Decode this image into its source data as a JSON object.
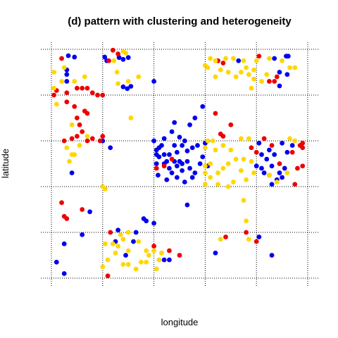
{
  "chart_data": {
    "type": "scatter",
    "title": "(d) pattern with clustering and heterogeneity",
    "xlabel": "longitude",
    "ylabel": "latitude",
    "xlim": [
      0,
      5
    ],
    "ylim": [
      0,
      5
    ],
    "grid": "dotted",
    "colors": {
      "blue": "#0000ee",
      "red": "#ee0000",
      "gold": "#ffd700"
    },
    "series": [
      {
        "color": "blue",
        "points": [
          [
            0.45,
            4.83
          ],
          [
            0.33,
            4.86
          ],
          [
            1.04,
            4.83
          ],
          [
            1.08,
            4.75
          ],
          [
            1.32,
            4.82
          ],
          [
            1.5,
            4.82
          ],
          [
            1.4,
            4.78
          ],
          [
            0.3,
            4.55
          ],
          [
            0.3,
            4.45
          ],
          [
            0.3,
            4.3
          ],
          [
            1.4,
            4.18
          ],
          [
            1.48,
            4.14
          ],
          [
            1.55,
            4.19
          ],
          [
            2.0,
            4.3
          ],
          [
            2.0,
            3.0
          ],
          [
            2.35,
            3.2
          ],
          [
            2.5,
            3.08
          ],
          [
            2.7,
            3.35
          ],
          [
            2.95,
            3.75
          ],
          [
            2.8,
            3.5
          ],
          [
            2.4,
            3.4
          ],
          [
            2.1,
            2.85
          ],
          [
            2.2,
            2.7
          ],
          [
            2.3,
            2.7
          ],
          [
            2.45,
            2.75
          ],
          [
            2.55,
            2.9
          ],
          [
            2.65,
            2.78
          ],
          [
            2.75,
            2.85
          ],
          [
            2.6,
            3.0
          ],
          [
            2.4,
            2.9
          ],
          [
            2.2,
            2.5
          ],
          [
            2.3,
            2.4
          ],
          [
            2.45,
            2.45
          ],
          [
            2.55,
            2.35
          ],
          [
            2.7,
            2.4
          ],
          [
            2.8,
            2.3
          ],
          [
            2.9,
            2.5
          ],
          [
            2.35,
            2.3
          ],
          [
            2.45,
            2.2
          ],
          [
            2.6,
            2.1
          ],
          [
            2.25,
            2.15
          ],
          [
            2.08,
            2.25
          ],
          [
            2.05,
            2.5
          ],
          [
            2.05,
            2.7
          ],
          [
            2.15,
            2.9
          ],
          [
            2.2,
            3.05
          ],
          [
            2.1,
            2.65
          ],
          [
            2.25,
            2.55
          ],
          [
            2.4,
            2.55
          ],
          [
            2.5,
            2.55
          ],
          [
            2.65,
            2.55
          ],
          [
            2.75,
            2.2
          ],
          [
            2.05,
            2.8
          ],
          [
            2.95,
            2.65
          ],
          [
            2.85,
            2.9
          ],
          [
            2.55,
            2.5
          ],
          [
            3.0,
            2.95
          ],
          [
            3.05,
            2.45
          ],
          [
            1.0,
            3.0
          ],
          [
            1.15,
            2.85
          ],
          [
            4.6,
            4.85
          ],
          [
            4.62,
            4.85
          ],
          [
            4.58,
            4.85
          ],
          [
            4.45,
            4.5
          ],
          [
            4.6,
            4.45
          ],
          [
            4.35,
            4.8
          ],
          [
            3.65,
            4.75
          ],
          [
            4.45,
            4.2
          ],
          [
            4.1,
            2.4
          ],
          [
            4.3,
            2.45
          ],
          [
            4.45,
            2.3
          ],
          [
            4.55,
            2.4
          ],
          [
            4.7,
            2.9
          ],
          [
            4.5,
            2.95
          ],
          [
            4.15,
            2.3
          ],
          [
            4.0,
            2.45
          ],
          [
            4.3,
            2.05
          ],
          [
            4.4,
            2.15
          ],
          [
            4.25,
            2.8
          ],
          [
            4.1,
            2.7
          ],
          [
            4.05,
            2.95
          ],
          [
            4.2,
            2.6
          ],
          [
            4.35,
            2.7
          ],
          [
            4.5,
            2.2
          ],
          [
            4.6,
            2.75
          ],
          [
            4.25,
            2.25
          ],
          [
            0.25,
            0.1
          ],
          [
            0.1,
            0.35
          ],
          [
            0.25,
            0.75
          ],
          [
            0.6,
            0.95
          ],
          [
            0.4,
            2.3
          ],
          [
            0.75,
            1.45
          ],
          [
            1.3,
            1.05
          ],
          [
            1.65,
            1.0
          ],
          [
            1.6,
            0.8
          ],
          [
            1.45,
            0.5
          ],
          [
            1.25,
            0.8
          ],
          [
            2.0,
            1.2
          ],
          [
            1.8,
            1.3
          ],
          [
            1.85,
            1.25
          ],
          [
            2.2,
            0.4
          ],
          [
            2.3,
            0.4
          ],
          [
            2.65,
            1.6
          ],
          [
            3.2,
            0.55
          ],
          [
            4.05,
            0.9
          ],
          [
            4.3,
            0.5
          ]
        ]
      },
      {
        "color": "red",
        "points": [
          [
            1.2,
            4.98
          ],
          [
            1.3,
            4.9
          ],
          [
            1.12,
            4.75
          ],
          [
            0.2,
            4.8
          ],
          [
            0.1,
            4.1
          ],
          [
            0.05,
            4.0
          ],
          [
            0.3,
            4.05
          ],
          [
            0.5,
            4.15
          ],
          [
            0.6,
            4.15
          ],
          [
            0.7,
            4.15
          ],
          [
            0.8,
            4.05
          ],
          [
            0.9,
            4.0
          ],
          [
            1.0,
            4.0
          ],
          [
            0.3,
            3.85
          ],
          [
            0.45,
            3.75
          ],
          [
            0.65,
            3.65
          ],
          [
            0.7,
            3.6
          ],
          [
            0.5,
            3.5
          ],
          [
            0.55,
            3.35
          ],
          [
            0.6,
            3.2
          ],
          [
            0.5,
            3.1
          ],
          [
            0.4,
            3.05
          ],
          [
            0.25,
            3.0
          ],
          [
            0.8,
            3.05
          ],
          [
            0.95,
            3.0
          ],
          [
            1.0,
            3.1
          ],
          [
            0.7,
            3.0
          ],
          [
            2.2,
            2.45
          ],
          [
            2.35,
            2.6
          ],
          [
            2.05,
            2.4
          ],
          [
            3.35,
            3.1
          ],
          [
            3.5,
            3.35
          ],
          [
            3.2,
            3.6
          ],
          [
            3.3,
            3.15
          ],
          [
            4.85,
            2.9
          ],
          [
            4.7,
            2.75
          ],
          [
            4.8,
            2.4
          ],
          [
            4.75,
            2.05
          ],
          [
            4.9,
            2.95
          ],
          [
            4.45,
            2.5
          ],
          [
            4.3,
            2.9
          ],
          [
            4.0,
            2.75
          ],
          [
            3.9,
            2.85
          ],
          [
            4.15,
            3.05
          ],
          [
            4.25,
            4.3
          ],
          [
            4.35,
            4.3
          ],
          [
            3.25,
            4.75
          ],
          [
            3.35,
            4.7
          ],
          [
            4.05,
            4.85
          ],
          [
            4.4,
            4.4
          ],
          [
            4.9,
            2.85
          ],
          [
            4.9,
            2.45
          ],
          [
            0.2,
            1.65
          ],
          [
            0.25,
            1.35
          ],
          [
            0.3,
            1.3
          ],
          [
            1.15,
            1.0
          ],
          [
            1.1,
            0.05
          ],
          [
            2.0,
            0.7
          ],
          [
            2.5,
            0.5
          ],
          [
            2.3,
            0.6
          ],
          [
            3.4,
            0.9
          ],
          [
            3.8,
            1.0
          ],
          [
            4.0,
            0.8
          ],
          [
            0.6,
            1.5
          ]
        ]
      },
      {
        "color": "gold",
        "points": [
          [
            1.4,
            4.95
          ],
          [
            1.45,
            4.92
          ],
          [
            1.22,
            4.75
          ],
          [
            1.28,
            4.5
          ],
          [
            1.3,
            4.25
          ],
          [
            1.5,
            4.3
          ],
          [
            1.7,
            4.4
          ],
          [
            0.25,
            4.6
          ],
          [
            0.05,
            4.5
          ],
          [
            0.05,
            4.15
          ],
          [
            0.1,
            3.8
          ],
          [
            0.2,
            4.3
          ],
          [
            0.45,
            4.3
          ],
          [
            0.65,
            4.4
          ],
          [
            0.4,
            3.35
          ],
          [
            0.3,
            2.85
          ],
          [
            0.4,
            2.7
          ],
          [
            0.45,
            2.7
          ],
          [
            0.35,
            2.55
          ],
          [
            0.55,
            2.9
          ],
          [
            0.7,
            3.1
          ],
          [
            1.55,
            3.5
          ],
          [
            1.0,
            2.0
          ],
          [
            3.1,
            4.8
          ],
          [
            3.2,
            4.75
          ],
          [
            3.05,
            4.6
          ],
          [
            3.3,
            4.55
          ],
          [
            3.4,
            4.8
          ],
          [
            3.55,
            4.8
          ],
          [
            3.7,
            4.5
          ],
          [
            3.8,
            4.6
          ],
          [
            3.85,
            4.45
          ],
          [
            3.95,
            4.35
          ],
          [
            3.9,
            4.15
          ],
          [
            3.6,
            4.4
          ],
          [
            3.45,
            4.5
          ],
          [
            3.2,
            4.4
          ],
          [
            3.0,
            4.65
          ],
          [
            3.95,
            4.55
          ],
          [
            4.1,
            4.3
          ],
          [
            4.2,
            4.45
          ],
          [
            4.5,
            4.75
          ],
          [
            4.65,
            4.6
          ],
          [
            4.75,
            4.6
          ],
          [
            4.25,
            4.8
          ],
          [
            4.0,
            4.75
          ],
          [
            3.75,
            4.75
          ],
          [
            3.0,
            2.85
          ],
          [
            3.05,
            3.0
          ],
          [
            3.15,
            3.0
          ],
          [
            3.2,
            2.8
          ],
          [
            3.35,
            2.9
          ],
          [
            3.5,
            2.8
          ],
          [
            3.6,
            2.6
          ],
          [
            3.45,
            2.5
          ],
          [
            3.35,
            2.4
          ],
          [
            3.25,
            2.3
          ],
          [
            3.1,
            2.2
          ],
          [
            3.0,
            2.05
          ],
          [
            3.25,
            2.05
          ],
          [
            3.45,
            2.0
          ],
          [
            3.55,
            2.1
          ],
          [
            3.7,
            2.35
          ],
          [
            3.75,
            2.6
          ],
          [
            3.9,
            2.55
          ],
          [
            3.95,
            2.3
          ],
          [
            3.8,
            2.15
          ],
          [
            3.85,
            3.05
          ],
          [
            3.7,
            3.05
          ],
          [
            3.0,
            2.45
          ],
          [
            3.1,
            2.5
          ],
          [
            4.65,
            3.05
          ],
          [
            4.75,
            3.0
          ],
          [
            3.0,
            2.3
          ],
          [
            3.75,
            1.7
          ],
          [
            3.8,
            1.25
          ],
          [
            3.85,
            0.85
          ],
          [
            3.3,
            0.85
          ],
          [
            4.25,
            2.25
          ],
          [
            4.4,
            2.1
          ],
          [
            4.6,
            2.3
          ],
          [
            1.05,
            1.95
          ],
          [
            1.2,
            0.75
          ],
          [
            1.3,
            0.7
          ],
          [
            1.35,
            0.95
          ],
          [
            1.5,
            0.6
          ],
          [
            1.5,
            0.3
          ],
          [
            1.65,
            0.2
          ],
          [
            1.75,
            0.35
          ],
          [
            1.85,
            0.6
          ],
          [
            1.9,
            0.5
          ],
          [
            1.85,
            0.35
          ],
          [
            2.0,
            0.6
          ],
          [
            1.7,
            0.8
          ],
          [
            1.4,
            0.85
          ],
          [
            1.25,
            0.55
          ],
          [
            1.1,
            0.4
          ],
          [
            1.0,
            0.25
          ],
          [
            2.05,
            0.2
          ],
          [
            2.1,
            0.4
          ],
          [
            2.15,
            0.55
          ],
          [
            1.5,
            1.0
          ],
          [
            1.4,
            0.3
          ],
          [
            1.05,
            0.75
          ]
        ]
      }
    ]
  }
}
